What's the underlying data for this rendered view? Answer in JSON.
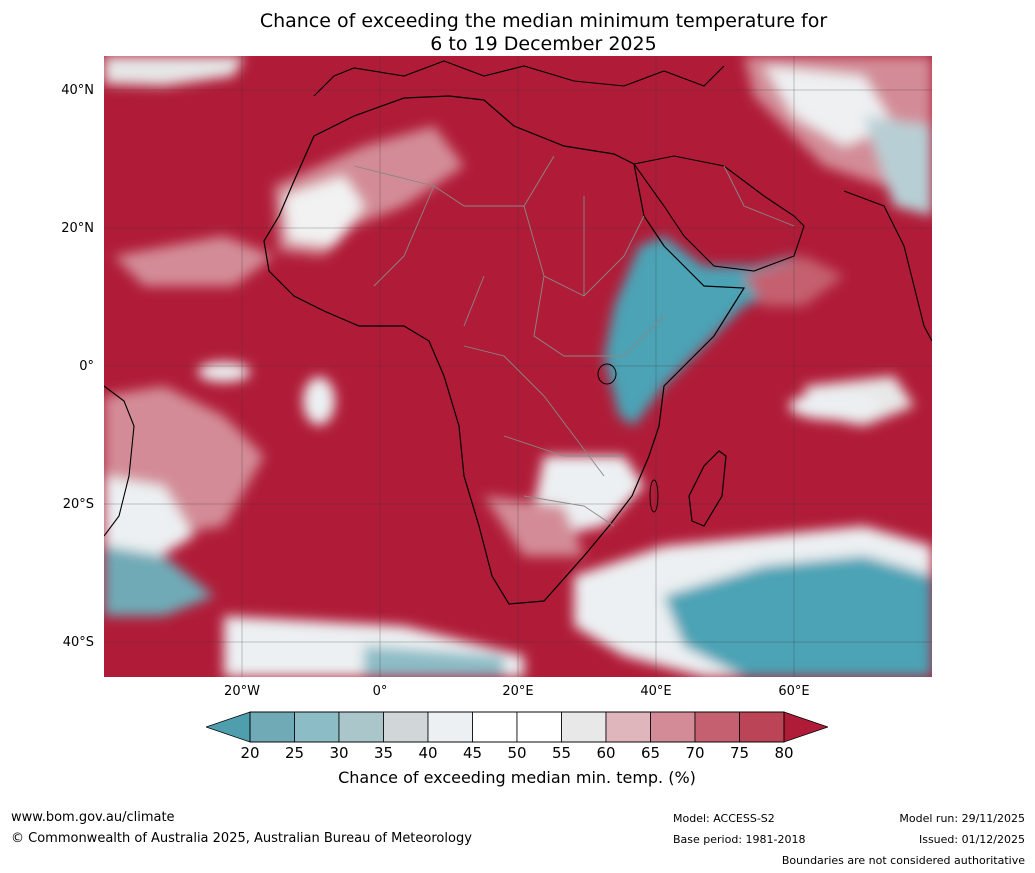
{
  "title": {
    "line1": "Chance of exceeding the median minimum temperature for",
    "line2": "6 to 19 December 2025"
  },
  "map": {
    "lat_labels": [
      "40°N",
      "20°N",
      "0°",
      "20°S",
      "40°S"
    ],
    "lon_labels": [
      "20°W",
      "0°",
      "20°E",
      "40°E",
      "60°E"
    ],
    "colors": {
      "high": "#b01c38",
      "mid_high": "#c85a6c",
      "neutral": "#f2f2f2",
      "low": "#4ca3b5",
      "coast": "#000000",
      "border": "#888888"
    }
  },
  "colorbar": {
    "ticks": [
      "20",
      "25",
      "30",
      "35",
      "40",
      "45",
      "50",
      "55",
      "60",
      "65",
      "70",
      "75",
      "80"
    ],
    "colors": [
      "#4e9eae",
      "#6faab6",
      "#8cbcc6",
      "#aac6ca",
      "#d1d7d9",
      "#ecf0f2",
      "#ffffff",
      "#ffffff",
      "#e8e8e8",
      "#e0b6bd",
      "#d38c97",
      "#c4606f",
      "#bb4556",
      "#b01c38"
    ],
    "label": "Chance of exceeding median min. temp. (%)"
  },
  "footer": {
    "website": "www.bom.gov.au/climate",
    "copyright": "© Commonwealth of Australia 2025, Australian Bureau of Meteorology",
    "model": "Model: ACCESS-S2",
    "base_period": "Base period: 1981-2018",
    "model_run": "Model run: 29/11/2025",
    "issued": "Issued: 01/12/2025",
    "disclaimer": "Boundaries are not considered authoritative"
  }
}
